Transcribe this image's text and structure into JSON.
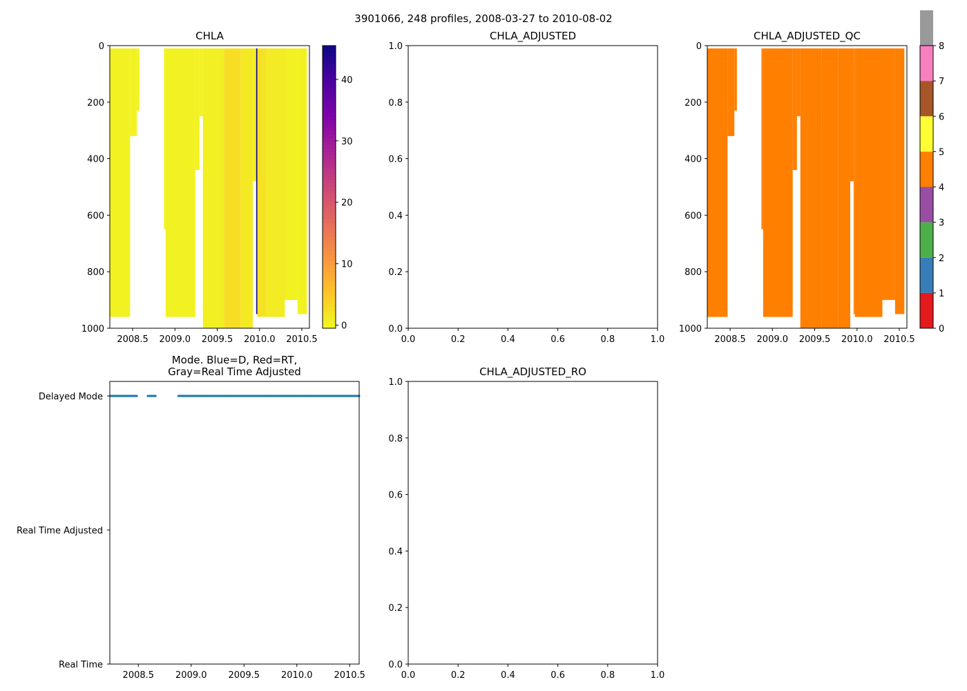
{
  "suptitle": "3901066, 248 profiles, 2008-03-27 to 2010-08-02",
  "chart_data": [
    {
      "type": "heatmap",
      "title": "CHLA",
      "xlim": [
        2008.23,
        2010.59
      ],
      "ylim": [
        1000,
        0
      ],
      "xticks": [
        2008.5,
        2009.0,
        2009.5,
        2010.0,
        2010.5
      ],
      "xtick_labels": [
        "2008.5",
        "2009.0",
        "2009.5",
        "2010.0",
        "2010.5"
      ],
      "yticks": [
        0,
        200,
        400,
        600,
        800,
        1000
      ],
      "ytick_labels": [
        "0",
        "200",
        "400",
        "600",
        "800",
        "1000"
      ],
      "colorbar": {
        "cmap": "plasma_r",
        "range": [
          -0.5,
          45.5
        ],
        "ticks": [
          0,
          10,
          20,
          30,
          40
        ],
        "tick_labels": [
          "0",
          "10",
          "20",
          "30",
          "40"
        ],
        "colors": [
          "#f0f921",
          "#fdc527",
          "#f89540",
          "#e66c5c",
          "#cc4778",
          "#aa2395",
          "#7e03a8",
          "#4c02a1",
          "#0d0887"
        ]
      },
      "columns": [
        {
          "x0": 2008.23,
          "x1": 2008.47,
          "depth": 960,
          "value": 0.3
        },
        {
          "x0": 2008.47,
          "x1": 2008.55,
          "depth": 320,
          "value": 0.3
        },
        {
          "x0": 2008.55,
          "x1": 2008.58,
          "depth": 230,
          "value": 0.2
        },
        {
          "x0": 2008.87,
          "x1": 2008.89,
          "depth": 650,
          "value": 0.3
        },
        {
          "x0": 2008.89,
          "x1": 2009.24,
          "depth": 960,
          "value": 0.4
        },
        {
          "x0": 2009.24,
          "x1": 2009.29,
          "depth": 440,
          "value": 0.3
        },
        {
          "x0": 2009.29,
          "x1": 2009.33,
          "depth": 250,
          "value": 0.3
        },
        {
          "x0": 2009.33,
          "x1": 2009.58,
          "depth": 1000,
          "value": 0.6
        },
        {
          "x0": 2009.58,
          "x1": 2009.78,
          "depth": 1000,
          "value": 2.5
        },
        {
          "x0": 2009.78,
          "x1": 2009.92,
          "depth": 1000,
          "value": 1.2
        },
        {
          "x0": 2009.92,
          "x1": 2009.96,
          "depth": 480,
          "value": 0.8
        },
        {
          "x0": 2009.96,
          "x1": 2009.975,
          "depth": 950,
          "value": 45.0
        },
        {
          "x0": 2009.975,
          "x1": 2010.08,
          "depth": 960,
          "value": 2.0
        },
        {
          "x0": 2010.08,
          "x1": 2010.3,
          "depth": 960,
          "value": 1.0
        },
        {
          "x0": 2010.3,
          "x1": 2010.45,
          "depth": 900,
          "value": 0.4
        },
        {
          "x0": 2010.45,
          "x1": 2010.56,
          "depth": 950,
          "value": 0.3
        }
      ]
    },
    {
      "type": "line",
      "title": "CHLA_ADJUSTED",
      "xlim": [
        0,
        1
      ],
      "ylim": [
        0,
        1
      ],
      "xticks": [
        0,
        0.2,
        0.4,
        0.6,
        0.8,
        1.0
      ],
      "xtick_labels": [
        "0.0",
        "0.2",
        "0.4",
        "0.6",
        "0.8",
        "1.0"
      ],
      "yticks": [
        0,
        0.2,
        0.4,
        0.6,
        0.8,
        1.0
      ],
      "ytick_labels": [
        "0.0",
        "0.2",
        "0.4",
        "0.6",
        "0.8",
        "1.0"
      ],
      "series": []
    },
    {
      "type": "heatmap",
      "title": "CHLA_ADJUSTED_QC",
      "xlim": [
        2008.23,
        2010.59
      ],
      "ylim": [
        1000,
        0
      ],
      "xticks": [
        2008.5,
        2009.0,
        2009.5,
        2010.0,
        2010.5
      ],
      "xtick_labels": [
        "2008.5",
        "2009.0",
        "2009.5",
        "2010.0",
        "2010.5"
      ],
      "yticks": [
        0,
        200,
        400,
        600,
        800,
        1000
      ],
      "ytick_labels": [
        "0",
        "200",
        "400",
        "600",
        "800",
        "1000"
      ],
      "colorbar": {
        "cmap": "Set1",
        "range": [
          0,
          8
        ],
        "ticks": [
          0,
          1,
          2,
          3,
          4,
          5,
          6,
          7,
          8
        ],
        "tick_labels": [
          "0",
          "1",
          "2",
          "3",
          "4",
          "5",
          "6",
          "7",
          "8"
        ],
        "colors": [
          "#e41a1c",
          "#377eb8",
          "#4daf4a",
          "#984ea3",
          "#ff7f00",
          "#ffff33",
          "#a65628",
          "#f781bf",
          "#999999"
        ]
      },
      "columns": [
        {
          "x0": 2008.23,
          "x1": 2008.47,
          "depth": 960,
          "value": 4
        },
        {
          "x0": 2008.47,
          "x1": 2008.55,
          "depth": 320,
          "value": 4
        },
        {
          "x0": 2008.55,
          "x1": 2008.58,
          "depth": 230,
          "value": 4
        },
        {
          "x0": 2008.87,
          "x1": 2008.89,
          "depth": 650,
          "value": 4
        },
        {
          "x0": 2008.89,
          "x1": 2009.24,
          "depth": 960,
          "value": 4
        },
        {
          "x0": 2009.24,
          "x1": 2009.29,
          "depth": 440,
          "value": 4
        },
        {
          "x0": 2009.29,
          "x1": 2009.33,
          "depth": 250,
          "value": 4
        },
        {
          "x0": 2009.33,
          "x1": 2009.58,
          "depth": 1000,
          "value": 4
        },
        {
          "x0": 2009.58,
          "x1": 2009.78,
          "depth": 1000,
          "value": 4
        },
        {
          "x0": 2009.78,
          "x1": 2009.92,
          "depth": 1000,
          "value": 4
        },
        {
          "x0": 2009.92,
          "x1": 2009.96,
          "depth": 480,
          "value": 4
        },
        {
          "x0": 2009.96,
          "x1": 2009.975,
          "depth": 950,
          "value": 4
        },
        {
          "x0": 2009.975,
          "x1": 2010.08,
          "depth": 960,
          "value": 4
        },
        {
          "x0": 2010.08,
          "x1": 2010.3,
          "depth": 960,
          "value": 4
        },
        {
          "x0": 2010.3,
          "x1": 2010.45,
          "depth": 900,
          "value": 4
        },
        {
          "x0": 2010.45,
          "x1": 2010.56,
          "depth": 950,
          "value": 4
        }
      ]
    },
    {
      "type": "scatter",
      "title": "Mode. Blue=D, Red=RT,\nGray=Real Time Adjusted",
      "xlim": [
        2008.23,
        2010.59
      ],
      "xticks": [
        2008.5,
        2009.0,
        2009.5,
        2010.0,
        2010.5
      ],
      "xtick_labels": [
        "2008.5",
        "2009.0",
        "2009.5",
        "2010.0",
        "2010.5"
      ],
      "ycategories": [
        "Real Time",
        "Real Time Adjusted",
        "Delayed Mode"
      ],
      "series": [
        {
          "name": "Delayed Mode",
          "color": "#1f77b4",
          "y": "Delayed Mode",
          "x_ranges": [
            [
              2008.24,
              2008.49
            ],
            [
              2008.59,
              2008.67
            ],
            [
              2008.88,
              2010.59
            ]
          ]
        }
      ]
    },
    {
      "type": "line",
      "title": "CHLA_ADJUSTED_RO",
      "xlim": [
        0,
        1
      ],
      "ylim": [
        0,
        1
      ],
      "xticks": [
        0,
        0.2,
        0.4,
        0.6,
        0.8,
        1.0
      ],
      "xtick_labels": [
        "0.0",
        "0.2",
        "0.4",
        "0.6",
        "0.8",
        "1.0"
      ],
      "yticks": [
        0,
        0.2,
        0.4,
        0.6,
        0.8,
        1.0
      ],
      "ytick_labels": [
        "0.0",
        "0.2",
        "0.4",
        "0.6",
        "0.8",
        "1.0"
      ],
      "series": []
    }
  ]
}
